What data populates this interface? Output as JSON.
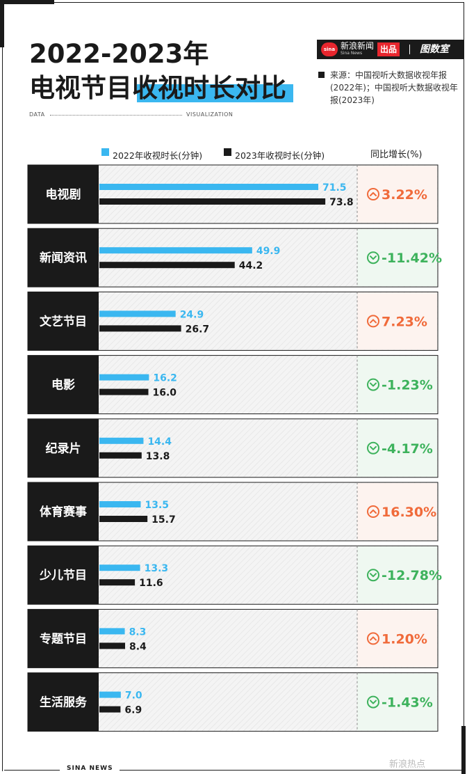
{
  "title": {
    "line1": "2022-2023年",
    "line2": "电视节目收视时长对比"
  },
  "brand": {
    "sina_logo": "sina",
    "news_name": "新浪新闻",
    "news_sub": "Sina News",
    "produced": "出品",
    "separator": "|",
    "tushuo": "图数室"
  },
  "source": {
    "text": "来源：中国视听大数据收视年报(2022年)；中国视听大数据收视年报(2023年)"
  },
  "data_visualization": {
    "left": "DATA",
    "right": "VISUALIZATION"
  },
  "legend": {
    "series_2022": "2022年收视时长(分钟)",
    "series_2023": "2023年收视时长(分钟)",
    "growth_header": "同比增长(%)"
  },
  "footer": {
    "text": "SINA NEWS",
    "watermark": "新浪热点"
  },
  "colors": {
    "series_2022": "#3ab7f0",
    "series_2023": "#1a1a1a",
    "up": "#f06a3a",
    "down": "#3db25c",
    "up_bg": "#fdf3ef",
    "down_bg": "#eff8f1",
    "label_bg": "#1a1a1a"
  },
  "chart_data": {
    "type": "bar",
    "orientation": "horizontal",
    "categories": [
      "电视剧",
      "新闻资讯",
      "文艺节目",
      "电影",
      "纪录片",
      "体育赛事",
      "少儿节目",
      "专题节目",
      "生活服务"
    ],
    "series": [
      {
        "name": "2022年收视时长(分钟)",
        "values": [
          71.5,
          49.9,
          24.9,
          16.2,
          14.4,
          13.5,
          13.3,
          8.3,
          7.0
        ],
        "labels": [
          "71.5",
          "49.9",
          "24.9",
          "16.2",
          "14.4",
          "13.5",
          "13.3",
          "8.3",
          "7.0"
        ]
      },
      {
        "name": "2023年收视时长(分钟)",
        "values": [
          73.8,
          44.2,
          26.7,
          16.0,
          13.8,
          15.7,
          11.6,
          8.4,
          6.9
        ],
        "labels": [
          "73.8",
          "44.2",
          "26.7",
          "16.0",
          "13.8",
          "15.7",
          "11.6",
          "8.4",
          "6.9"
        ]
      }
    ],
    "growth": {
      "header": "同比增长(%)",
      "labels": [
        "3.22%",
        "-11.42%",
        "7.23%",
        "-1.23%",
        "-4.17%",
        "16.30%",
        "-12.78%",
        "1.20%",
        "-1.43%"
      ],
      "direction": [
        "up",
        "down",
        "up",
        "down",
        "down",
        "up",
        "down",
        "up",
        "down"
      ]
    },
    "xlim": [
      0,
      80
    ],
    "grid": false,
    "legend": "top"
  }
}
